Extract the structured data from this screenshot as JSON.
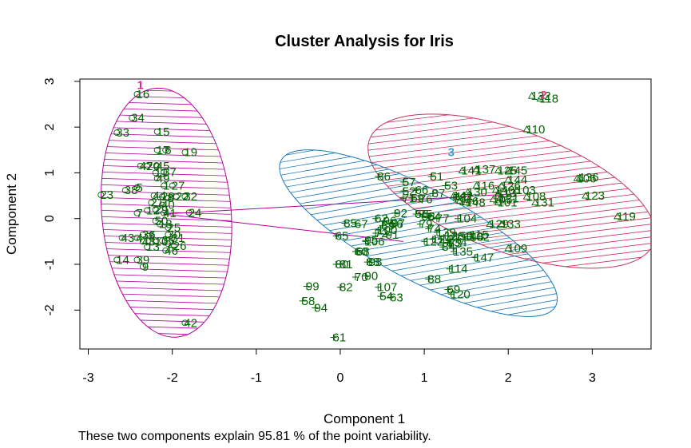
{
  "chart_data": {
    "type": "scatter",
    "title": "Cluster Analysis for Iris",
    "xlabel": "Component 1",
    "ylabel": "Component 2",
    "xlim": [
      -3.1,
      3.7
    ],
    "ylim": [
      -2.85,
      3.05
    ],
    "x_ticks": [
      -3,
      -2,
      -1,
      0,
      1,
      2,
      3
    ],
    "y_ticks": [
      -2,
      -1,
      0,
      1,
      2,
      3
    ],
    "colors": {
      "points": "#006400",
      "cluster1": "#b4009e",
      "cluster2": "#c8305a",
      "cluster3": "#1a7ab8",
      "label1": "#e6209a",
      "label2": "#e0407a",
      "label3": "#3a9ad9"
    },
    "clusters": [
      {
        "label": "1",
        "center": [
          -2.1,
          0.1
        ],
        "ellipse": {
          "cx": -2.07,
          "cy": 0.13,
          "rx": 0.77,
          "ry": 2.73,
          "angle_deg": -5
        },
        "label_pos": [
          -2.38,
          2.92
        ]
      },
      {
        "label": "2",
        "center": [
          2.15,
          0.55
        ],
        "ellipse": {
          "cx": 2.04,
          "cy": 0.6,
          "rx": 1.8,
          "ry": 1.33,
          "angle_deg": 20
        },
        "label_pos": [
          2.42,
          2.7
        ]
      },
      {
        "label": "3",
        "center": [
          0.75,
          -0.5
        ],
        "ellipse": {
          "cx": 0.93,
          "cy": -0.32,
          "rx": 1.85,
          "ry": 1.0,
          "angle_deg": 28
        },
        "label_pos": [
          1.32,
          1.45
        ]
      }
    ],
    "points": [
      {
        "id": "16",
        "x": -2.42,
        "y": 2.72,
        "c": 1
      },
      {
        "id": "34",
        "x": -2.48,
        "y": 2.2,
        "c": 1
      },
      {
        "id": "33",
        "x": -2.66,
        "y": 1.88,
        "c": 1
      },
      {
        "id": "15",
        "x": -2.18,
        "y": 1.9,
        "c": 1
      },
      {
        "id": "17",
        "x": -2.18,
        "y": 1.5,
        "c": 1
      },
      {
        "id": "6",
        "x": -2.08,
        "y": 1.5,
        "c": 1
      },
      {
        "id": "19",
        "x": -1.85,
        "y": 1.45,
        "c": 1
      },
      {
        "id": "47",
        "x": -2.38,
        "y": 1.15,
        "c": 1
      },
      {
        "id": "20",
        "x": -2.3,
        "y": 1.15,
        "c": 1
      },
      {
        "id": "45",
        "x": -2.18,
        "y": 1.15,
        "c": 1
      },
      {
        "id": "11",
        "x": -2.2,
        "y": 1.0,
        "c": 1
      },
      {
        "id": "37",
        "x": -2.1,
        "y": 1.02,
        "c": 1
      },
      {
        "id": "49",
        "x": -2.18,
        "y": 0.88,
        "c": 1
      },
      {
        "id": "23",
        "x": -2.85,
        "y": 0.52,
        "c": 1
      },
      {
        "id": "38",
        "x": -2.56,
        "y": 0.62,
        "c": 1
      },
      {
        "id": "5",
        "x": -2.42,
        "y": 0.68,
        "c": 1
      },
      {
        "id": "1",
        "x": -2.1,
        "y": 0.72,
        "c": 1
      },
      {
        "id": "27",
        "x": -2.0,
        "y": 0.72,
        "c": 1
      },
      {
        "id": "28",
        "x": -2.12,
        "y": 0.48,
        "c": 1
      },
      {
        "id": "44",
        "x": -2.22,
        "y": 0.5,
        "c": 1
      },
      {
        "id": "21",
        "x": -2.25,
        "y": 0.35,
        "c": 1
      },
      {
        "id": "32",
        "x": -1.85,
        "y": 0.48,
        "c": 1
      },
      {
        "id": "22",
        "x": -1.95,
        "y": 0.48,
        "c": 1
      },
      {
        "id": "40",
        "x": -2.12,
        "y": 0.3,
        "c": 1
      },
      {
        "id": "8",
        "x": -2.05,
        "y": 0.45,
        "c": 1
      },
      {
        "id": "29",
        "x": -2.2,
        "y": 0.2,
        "c": 1
      },
      {
        "id": "7",
        "x": -2.42,
        "y": 0.12,
        "c": 1
      },
      {
        "id": "12",
        "x": -2.3,
        "y": 0.18,
        "c": 1
      },
      {
        "id": "24",
        "x": -1.8,
        "y": 0.13,
        "c": 1
      },
      {
        "id": "41",
        "x": -2.1,
        "y": 0.12,
        "c": 1
      },
      {
        "id": "50",
        "x": -2.2,
        "y": -0.05,
        "c": 1
      },
      {
        "id": "18",
        "x": -2.15,
        "y": -0.12,
        "c": 1
      },
      {
        "id": "36",
        "x": -2.35,
        "y": -0.35,
        "c": 1
      },
      {
        "id": "43",
        "x": -2.6,
        "y": -0.42,
        "c": 1
      },
      {
        "id": "4",
        "x": -2.42,
        "y": -0.42,
        "c": 1
      },
      {
        "id": "3",
        "x": -2.28,
        "y": -0.38,
        "c": 1
      },
      {
        "id": "48",
        "x": -2.35,
        "y": -0.5,
        "c": 1
      },
      {
        "id": "10",
        "x": -2.2,
        "y": -0.5,
        "c": 1
      },
      {
        "id": "35",
        "x": -2.12,
        "y": -0.48,
        "c": 1
      },
      {
        "id": "13",
        "x": -2.3,
        "y": -0.62,
        "c": 1
      },
      {
        "id": "2",
        "x": -2.05,
        "y": -0.55,
        "c": 1
      },
      {
        "id": "46",
        "x": -2.08,
        "y": -0.7,
        "c": 1
      },
      {
        "id": "26",
        "x": -1.98,
        "y": -0.6,
        "c": 1
      },
      {
        "id": "31",
        "x": -2.0,
        "y": -0.42,
        "c": 1
      },
      {
        "id": "30",
        "x": -2.05,
        "y": -0.35,
        "c": 1
      },
      {
        "id": "14",
        "x": -2.66,
        "y": -0.9,
        "c": 1
      },
      {
        "id": "39",
        "x": -2.42,
        "y": -0.9,
        "c": 1
      },
      {
        "id": "9",
        "x": -2.35,
        "y": -1.05,
        "c": 1
      },
      {
        "id": "42",
        "x": -1.85,
        "y": -2.28,
        "c": 1
      },
      {
        "id": "25",
        "x": -2.05,
        "y": -0.2,
        "c": 1
      },
      {
        "id": "132",
        "x": 2.28,
        "y": 2.68,
        "c": 2
      },
      {
        "id": "118",
        "x": 2.38,
        "y": 2.62,
        "c": 2
      },
      {
        "id": "110",
        "x": 2.22,
        "y": 1.95,
        "c": 2
      },
      {
        "id": "106",
        "x": 2.82,
        "y": 0.88,
        "c": 2
      },
      {
        "id": "136",
        "x": 2.85,
        "y": 0.9,
        "c": 2
      },
      {
        "id": "123",
        "x": 2.92,
        "y": 0.5,
        "c": 2
      },
      {
        "id": "119",
        "x": 3.3,
        "y": 0.05,
        "c": 2
      },
      {
        "id": "108",
        "x": 2.22,
        "y": 0.48,
        "c": 2
      },
      {
        "id": "131",
        "x": 2.32,
        "y": 0.35,
        "c": 2
      },
      {
        "id": "103",
        "x": 2.1,
        "y": 0.62,
        "c": 2
      },
      {
        "id": "125",
        "x": 1.88,
        "y": 1.05,
        "c": 2
      },
      {
        "id": "145",
        "x": 2.0,
        "y": 1.05,
        "c": 2
      },
      {
        "id": "144",
        "x": 2.0,
        "y": 0.85,
        "c": 2
      },
      {
        "id": "137",
        "x": 1.62,
        "y": 1.08,
        "c": 2
      },
      {
        "id": "141",
        "x": 1.45,
        "y": 1.05,
        "c": 2
      },
      {
        "id": "116",
        "x": 1.62,
        "y": 0.72,
        "c": 2
      },
      {
        "id": "126",
        "x": 1.92,
        "y": 0.72,
        "c": 2
      },
      {
        "id": "140",
        "x": 1.85,
        "y": 0.62,
        "c": 2
      },
      {
        "id": "113",
        "x": 1.88,
        "y": 0.55,
        "c": 2
      },
      {
        "id": "121",
        "x": 1.9,
        "y": 0.45,
        "c": 2
      },
      {
        "id": "105",
        "x": 1.82,
        "y": 0.42,
        "c": 2
      },
      {
        "id": "130",
        "x": 1.52,
        "y": 0.58,
        "c": 2
      },
      {
        "id": "148",
        "x": 1.5,
        "y": 0.35,
        "c": 2
      },
      {
        "id": "133",
        "x": 1.92,
        "y": -0.12,
        "c": 2
      },
      {
        "id": "129",
        "x": 1.78,
        "y": -0.12,
        "c": 2
      },
      {
        "id": "109",
        "x": 2.0,
        "y": -0.65,
        "c": 2
      },
      {
        "id": "101",
        "x": 1.88,
        "y": 0.35,
        "c": 2
      },
      {
        "id": "142",
        "x": 1.35,
        "y": 0.5,
        "c": 2
      },
      {
        "id": "146",
        "x": 1.42,
        "y": 0.38,
        "c": 2
      },
      {
        "id": "86",
        "x": 0.45,
        "y": 0.92,
        "c": 3
      },
      {
        "id": "57",
        "x": 0.75,
        "y": 0.8,
        "c": 3
      },
      {
        "id": "51",
        "x": 1.08,
        "y": 0.92,
        "c": 3
      },
      {
        "id": "53",
        "x": 1.25,
        "y": 0.72,
        "c": 3
      },
      {
        "id": "66",
        "x": 0.9,
        "y": 0.62,
        "c": 3
      },
      {
        "id": "87",
        "x": 1.1,
        "y": 0.55,
        "c": 3
      },
      {
        "id": "52",
        "x": 0.75,
        "y": 0.6,
        "c": 3
      },
      {
        "id": "59",
        "x": 0.85,
        "y": 0.45,
        "c": 3
      },
      {
        "id": "76",
        "x": 0.95,
        "y": 0.42,
        "c": 3
      },
      {
        "id": "71",
        "x": 0.75,
        "y": 0.45,
        "c": 3
      },
      {
        "id": "78",
        "x": 1.35,
        "y": 0.45,
        "c": 3
      },
      {
        "id": "111",
        "x": 1.38,
        "y": 0.48,
        "c": 3
      },
      {
        "id": "92",
        "x": 0.65,
        "y": 0.12,
        "c": 3
      },
      {
        "id": "55",
        "x": 0.9,
        "y": 0.1,
        "c": 3
      },
      {
        "id": "75",
        "x": 0.95,
        "y": 0.1,
        "c": 3
      },
      {
        "id": "98",
        "x": 0.98,
        "y": 0.05,
        "c": 3
      },
      {
        "id": "64",
        "x": 1.05,
        "y": 0.05,
        "c": 3
      },
      {
        "id": "77",
        "x": 1.15,
        "y": 0.0,
        "c": 3
      },
      {
        "id": "104",
        "x": 1.4,
        "y": 0.0,
        "c": 3
      },
      {
        "id": "62",
        "x": 0.42,
        "y": 0.0,
        "c": 3
      },
      {
        "id": "96",
        "x": 0.52,
        "y": -0.05,
        "c": 3
      },
      {
        "id": "67",
        "x": 0.18,
        "y": -0.12,
        "c": 3
      },
      {
        "id": "85",
        "x": 0.05,
        "y": -0.1,
        "c": 3
      },
      {
        "id": "56",
        "x": 0.6,
        "y": -0.12,
        "c": 3
      },
      {
        "id": "97",
        "x": 0.62,
        "y": -0.1,
        "c": 3
      },
      {
        "id": "89",
        "x": 0.5,
        "y": -0.15,
        "c": 3
      },
      {
        "id": "79",
        "x": 0.95,
        "y": -0.12,
        "c": 3
      },
      {
        "id": "74",
        "x": 1.05,
        "y": -0.22,
        "c": 3
      },
      {
        "id": "72",
        "x": 0.42,
        "y": -0.32,
        "c": 3
      },
      {
        "id": "100",
        "x": 0.45,
        "y": -0.25,
        "c": 3
      },
      {
        "id": "65",
        "x": -0.05,
        "y": -0.38,
        "c": 3
      },
      {
        "id": "124",
        "x": 1.1,
        "y": -0.45,
        "c": 3
      },
      {
        "id": "127",
        "x": 1.2,
        "y": -0.45,
        "c": 3
      },
      {
        "id": "139",
        "x": 1.15,
        "y": -0.3,
        "c": 3
      },
      {
        "id": "128",
        "x": 1.25,
        "y": -0.38,
        "c": 3
      },
      {
        "id": "134",
        "x": 1.28,
        "y": -0.52,
        "c": 3
      },
      {
        "id": "84",
        "x": 1.22,
        "y": -0.62,
        "c": 3
      },
      {
        "id": "135",
        "x": 1.35,
        "y": -0.72,
        "c": 3
      },
      {
        "id": "73",
        "x": 1.3,
        "y": -0.55,
        "c": 3
      },
      {
        "id": "115",
        "x": 1.55,
        "y": -0.35,
        "c": 3
      },
      {
        "id": "102",
        "x": 1.55,
        "y": -0.4,
        "c": 3
      },
      {
        "id": "143",
        "x": 1.48,
        "y": -0.4,
        "c": 3
      },
      {
        "id": "122",
        "x": 1.0,
        "y": -0.5,
        "c": 3
      },
      {
        "id": "150",
        "x": 1.35,
        "y": -0.38,
        "c": 3
      },
      {
        "id": "147",
        "x": 1.6,
        "y": -0.85,
        "c": 3
      },
      {
        "id": "114",
        "x": 1.3,
        "y": -1.1,
        "c": 3
      },
      {
        "id": "95",
        "x": 0.3,
        "y": -0.48,
        "c": 3
      },
      {
        "id": "106b",
        "x": 0.3,
        "y": -0.5,
        "c": 3
      },
      {
        "id": "60",
        "x": 0.18,
        "y": -0.72,
        "c": 3
      },
      {
        "id": "68",
        "x": 0.2,
        "y": -0.72,
        "c": 3
      },
      {
        "id": "83",
        "x": 0.32,
        "y": -0.95,
        "c": 3
      },
      {
        "id": "93",
        "x": 0.35,
        "y": -0.95,
        "c": 3
      },
      {
        "id": "80",
        "x": -0.05,
        "y": -1.0,
        "c": 3
      },
      {
        "id": "81",
        "x": 0.0,
        "y": -1.0,
        "c": 3
      },
      {
        "id": "70",
        "x": 0.18,
        "y": -1.28,
        "c": 3
      },
      {
        "id": "90",
        "x": 0.3,
        "y": -1.25,
        "c": 3
      },
      {
        "id": "82",
        "x": 0.0,
        "y": -1.5,
        "c": 3
      },
      {
        "id": "107",
        "x": 0.45,
        "y": -1.5,
        "c": 3
      },
      {
        "id": "54",
        "x": 0.48,
        "y": -1.7,
        "c": 3
      },
      {
        "id": "63",
        "x": 0.6,
        "y": -1.72,
        "c": 3
      },
      {
        "id": "99",
        "x": -0.4,
        "y": -1.48,
        "c": 3
      },
      {
        "id": "58",
        "x": -0.45,
        "y": -1.8,
        "c": 3
      },
      {
        "id": "94",
        "x": -0.3,
        "y": -1.95,
        "c": 3
      },
      {
        "id": "61",
        "x": -0.08,
        "y": -2.6,
        "c": 3
      },
      {
        "id": "88",
        "x": 1.05,
        "y": -1.32,
        "c": 3
      },
      {
        "id": "69",
        "x": 1.28,
        "y": -1.55,
        "c": 3
      },
      {
        "id": "120",
        "x": 1.32,
        "y": -1.65,
        "c": 3
      },
      {
        "id": "91",
        "x": 0.55,
        "y": -0.35,
        "c": 3
      }
    ]
  },
  "caption": "These two components explain 95.81 % of the point variability."
}
